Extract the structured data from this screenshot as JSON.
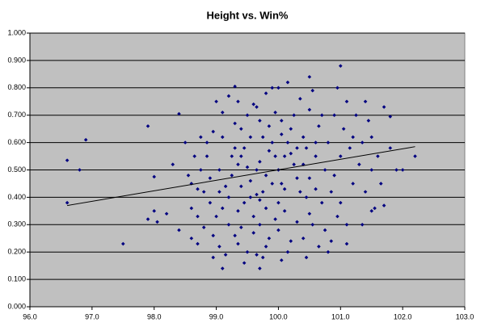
{
  "chart_data": {
    "type": "scatter",
    "title": "Height vs. Win%",
    "color": "#000080",
    "background": "#c0c0c0",
    "grid": true,
    "xlim": [
      96,
      103
    ],
    "ylim": [
      0,
      1
    ],
    "xticks": [
      {
        "value": 96,
        "label": "96.0"
      },
      {
        "value": 97,
        "label": "97.0"
      },
      {
        "value": 98,
        "label": "98.0"
      },
      {
        "value": 99,
        "label": "99.0"
      },
      {
        "value": 100,
        "label": "100.0"
      },
      {
        "value": 101,
        "label": "101.0"
      },
      {
        "value": 102,
        "label": "102.0"
      },
      {
        "value": 103,
        "label": "103.0"
      }
    ],
    "yticks": [
      {
        "value": 0,
        "label": "0.000"
      },
      {
        "value": 0.1,
        "label": "0.100"
      },
      {
        "value": 0.2,
        "label": "0.200"
      },
      {
        "value": 0.3,
        "label": "0.300"
      },
      {
        "value": 0.4,
        "label": "0.400"
      },
      {
        "value": 0.5,
        "label": "0.500"
      },
      {
        "value": 0.6,
        "label": "0.600"
      },
      {
        "value": 0.7,
        "label": "0.700"
      },
      {
        "value": 0.8,
        "label": "0.800"
      },
      {
        "value": 0.9,
        "label": "0.900"
      },
      {
        "value": 1,
        "label": "1.000"
      }
    ],
    "x": [
      96.6,
      96.6,
      96.8,
      96.9,
      97.5,
      97.9,
      97.9,
      98.0,
      98.0,
      98.05,
      98.2,
      98.4,
      98.3,
      98.4,
      98.5,
      98.6,
      98.7,
      98.6,
      101.8,
      102.0,
      102.2,
      101.7,
      101.8,
      101.7,
      101.9,
      101.5,
      101.0,
      100.5,
      99.3,
      99.1,
      99.7,
      98.95,
      101.1,
      98.8,
      98.85,
      98.9,
      98.95,
      98.8,
      98.9,
      99.0,
      98.95,
      98.85,
      99.0,
      99.05,
      99.1,
      99.15,
      99.2,
      99.1,
      99.25,
      99.05,
      99.2,
      99.3,
      99.15,
      99.25,
      99.1,
      99.3,
      99.2,
      99.05,
      99.3,
      99.35,
      99.4,
      99.45,
      99.5,
      99.4,
      99.55,
      99.35,
      99.5,
      99.45,
      99.6,
      99.4,
      99.55,
      99.35,
      99.5,
      99.6,
      99.45,
      99.55,
      99.4,
      99.6,
      99.35,
      99.65,
      99.7,
      99.75,
      99.8,
      99.7,
      99.85,
      99.65,
      99.9,
      99.75,
      99.8,
      99.95,
      99.7,
      99.85,
      99.9,
      99.65,
      99.8,
      99.95,
      99.75,
      99.9,
      99.85,
      99.7,
      99.95,
      99.8,
      99.65,
      100.0,
      100.05,
      100.1,
      100.15,
      100.0,
      100.2,
      100.05,
      100.25,
      100.1,
      100.3,
      100.15,
      100.0,
      100.35,
      100.2,
      100.25,
      100.05,
      100.3,
      100.1,
      100.35,
      100.2,
      100.0,
      100.15,
      100.3,
      100.05,
      100.4,
      100.45,
      100.5,
      100.55,
      100.6,
      100.45,
      100.65,
      100.5,
      100.7,
      100.55,
      100.4,
      100.6,
      100.75,
      100.5,
      100.65,
      100.45,
      100.7,
      100.6,
      100.4,
      100.75,
      100.8,
      100.85,
      100.9,
      100.95,
      101.0,
      100.85,
      101.05,
      100.9,
      101.1,
      101.0,
      101.15,
      100.8,
      101.2,
      101.25,
      101.1,
      100.95,
      101.2,
      101.3,
      101.35,
      101.4,
      101.45,
      101.5,
      101.55,
      101.4,
      101.6,
      101.35,
      101.5,
      101.65,
      98.55,
      98.6,
      98.65,
      98.7,
      98.75,
      98.7,
      98.75
    ],
    "values": [
      0.535,
      0.38,
      0.5,
      0.61,
      0.23,
      0.32,
      0.66,
      0.475,
      0.35,
      0.31,
      0.34,
      0.705,
      0.52,
      0.28,
      0.6,
      0.45,
      0.23,
      0.25,
      0.58,
      0.5,
      0.55,
      0.73,
      0.695,
      0.37,
      0.5,
      0.35,
      0.88,
      0.84,
      0.805,
      0.14,
      0.14,
      0.18,
      0.23,
      0.42,
      0.55,
      0.38,
      0.64,
      0.29,
      0.47,
      0.75,
      0.26,
      0.6,
      0.33,
      0.5,
      0.62,
      0.44,
      0.3,
      0.71,
      0.55,
      0.22,
      0.4,
      0.67,
      0.19,
      0.48,
      0.36,
      0.58,
      0.77,
      0.42,
      0.26,
      0.52,
      0.65,
      0.38,
      0.7,
      0.29,
      0.46,
      0.75,
      0.2,
      0.58,
      0.33,
      0.44,
      0.62,
      0.23,
      0.51,
      0.74,
      0.16,
      0.4,
      0.55,
      0.27,
      0.35,
      0.5,
      0.68,
      0.42,
      0.78,
      0.3,
      0.57,
      0.19,
      0.45,
      0.62,
      0.36,
      0.71,
      0.53,
      0.25,
      0.6,
      0.41,
      0.48,
      0.32,
      0.18,
      0.8,
      0.66,
      0.39,
      0.55,
      0.22,
      0.73,
      0.5,
      0.63,
      0.43,
      0.82,
      0.28,
      0.56,
      0.17,
      0.7,
      0.35,
      0.47,
      0.6,
      0.38,
      0.76,
      0.24,
      0.52,
      0.68,
      0.31,
      0.55,
      0.42,
      0.65,
      0.8,
      0.2,
      0.58,
      0.45,
      0.62,
      0.4,
      0.72,
      0.3,
      0.55,
      0.18,
      0.66,
      0.47,
      0.38,
      0.79,
      0.25,
      0.6,
      0.5,
      0.34,
      0.22,
      0.58,
      0.7,
      0.43,
      0.52,
      0.28,
      0.6,
      0.42,
      0.7,
      0.33,
      0.55,
      0.24,
      0.65,
      0.48,
      0.75,
      0.38,
      0.58,
      0.2,
      0.45,
      0.7,
      0.3,
      0.8,
      0.62,
      0.52,
      0.6,
      0.42,
      0.68,
      0.5,
      0.36,
      0.75,
      0.55,
      0.3,
      0.62,
      0.45,
      0.48,
      0.36,
      0.55,
      0.43,
      0.62,
      0.33,
      0.5
    ],
    "trendline": {
      "x": [
        96.6,
        102.2
      ],
      "values": [
        0.37,
        0.585
      ],
      "color": "#000000"
    }
  }
}
